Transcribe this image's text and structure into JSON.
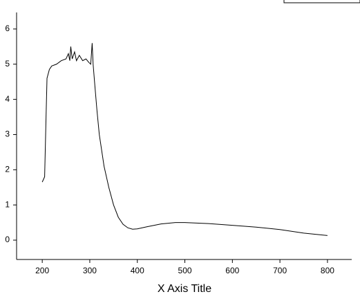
{
  "chart_data": {
    "type": "line",
    "x_label": "X Axis Title",
    "x": [
      200,
      205,
      208,
      210,
      215,
      220,
      230,
      240,
      250,
      255,
      258,
      260,
      263,
      268,
      272,
      278,
      285,
      292,
      298,
      302,
      305,
      307,
      310,
      315,
      320,
      330,
      340,
      350,
      360,
      370,
      380,
      390,
      400,
      420,
      450,
      480,
      500,
      550,
      600,
      650,
      700,
      750,
      800
    ],
    "series": [
      {
        "color": "#000000",
        "values": [
          1.65,
          1.8,
          3.5,
          4.6,
          4.85,
          4.95,
          5.0,
          5.1,
          5.15,
          5.3,
          5.1,
          5.5,
          5.15,
          5.35,
          5.1,
          5.25,
          5.1,
          5.15,
          5.05,
          5.0,
          5.6,
          5.0,
          4.5,
          3.7,
          3.0,
          2.1,
          1.5,
          1.0,
          0.65,
          0.45,
          0.35,
          0.31,
          0.32,
          0.38,
          0.46,
          0.5,
          0.5,
          0.47,
          0.42,
          0.37,
          0.3,
          0.2,
          0.13
        ]
      }
    ],
    "xlim": [
      146,
      851
    ],
    "ylim": [
      -0.55,
      6.47
    ],
    "xticks": [
      200,
      300,
      400,
      500,
      600,
      700,
      800
    ],
    "yticks": [
      0,
      1,
      2,
      3,
      4,
      5,
      6
    ]
  }
}
